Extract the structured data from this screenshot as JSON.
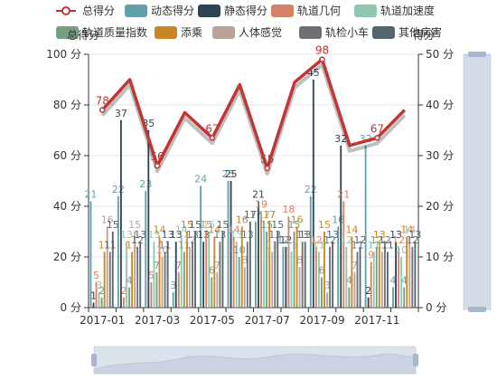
{
  "legend": [
    {
      "name": "总得分",
      "color": "#c23531",
      "kind": "line"
    },
    {
      "name": "动态得分",
      "color": "#61a0a8",
      "kind": "bar"
    },
    {
      "name": "静态得分",
      "color": "#2f4554",
      "kind": "bar"
    },
    {
      "name": "轨道几何",
      "color": "#d48265",
      "kind": "bar"
    },
    {
      "name": "轨道加速度",
      "color": "#91c7ae",
      "kind": "bar"
    },
    {
      "name": "轨道质量指数",
      "color": "#749f83",
      "kind": "bar"
    },
    {
      "name": "添乘",
      "color": "#ca8622",
      "kind": "bar"
    },
    {
      "name": "人体感觉",
      "color": "#bda29a",
      "kind": "bar"
    },
    {
      "name": "轨检小车",
      "color": "#6e7074",
      "kind": "bar"
    },
    {
      "name": "其他病害",
      "color": "#546570",
      "kind": "bar"
    }
  ],
  "chart_data": {
    "type": "bar",
    "categories": [
      "2017-01",
      "2017-02",
      "2017-03",
      "2017-04",
      "2017-05",
      "2017-06",
      "2017-07",
      "2017-08",
      "2017-09",
      "2017-10",
      "2017-11",
      "2017-12"
    ],
    "x_tick_labels": [
      "2017-01",
      "2017-03",
      "2017-05",
      "2017-07",
      "2017-09",
      "2017-11"
    ],
    "y_left": {
      "name": "总得分",
      "min": 0,
      "max": 100,
      "ticks": [
        0,
        20,
        40,
        60,
        80,
        100
      ],
      "unit": "分"
    },
    "y_right": {
      "name": "得分",
      "min": 0,
      "max": 50,
      "ticks": [
        0,
        10,
        20,
        30,
        40,
        50
      ],
      "unit": "分"
    },
    "line_series": {
      "name": "总得分",
      "axis": "left",
      "color": "#c23531",
      "values": [
        78,
        90,
        56,
        77,
        67,
        88,
        55,
        89,
        98,
        64,
        67,
        78
      ],
      "labeled": [
        true,
        false,
        true,
        false,
        true,
        false,
        true,
        false,
        true,
        false,
        true,
        false
      ]
    },
    "series": [
      {
        "name": "动态得分",
        "color": "#61a0a8",
        "values": [
          21,
          22,
          23,
          3,
          24,
          25,
          17,
          12,
          22,
          16,
          32,
          4
        ]
      },
      {
        "name": "静态得分",
        "color": "#2f4554",
        "values": [
          1,
          37,
          35,
          13,
          13,
          25,
          21,
          12,
          45,
          32,
          2,
          13
        ]
      },
      {
        "name": "轨道几何",
        "color": "#d48265",
        "values": [
          5,
          2,
          5,
          7,
          15,
          14,
          19,
          18,
          12,
          21,
          9,
          12
        ]
      },
      {
        "name": "轨道加速度",
        "color": "#91c7ae",
        "values": [
          3,
          13,
          13,
          14,
          15,
          13,
          17,
          11,
          11,
          12,
          11,
          10
        ]
      },
      {
        "name": "轨道质量指数",
        "color": "#749f83",
        "values": [
          2,
          4,
          7,
          11,
          6,
          10,
          15,
          15,
          6,
          4,
          12,
          4
        ]
      },
      {
        "name": "添乘",
        "color": "#ca8622",
        "values": [
          11,
          11,
          14,
          15,
          14,
          16,
          17,
          16,
          15,
          14,
          13,
          14
        ]
      },
      {
        "name": "人体感觉",
        "color": "#bda29a",
        "values": [
          16,
          15,
          10,
          12,
          7,
          8,
          11,
          8,
          3,
          7,
          11,
          14
        ]
      },
      {
        "name": "轨检小车",
        "color": "#6e7074",
        "values": [
          11,
          12,
          11,
          13,
          13,
          13,
          13,
          13,
          12,
          11,
          12,
          12
        ]
      },
      {
        "name": "其他病害",
        "color": "#546570",
        "values": [
          15,
          13,
          13,
          15,
          15,
          17,
          15,
          13,
          13,
          12,
          11,
          13
        ]
      }
    ]
  }
}
